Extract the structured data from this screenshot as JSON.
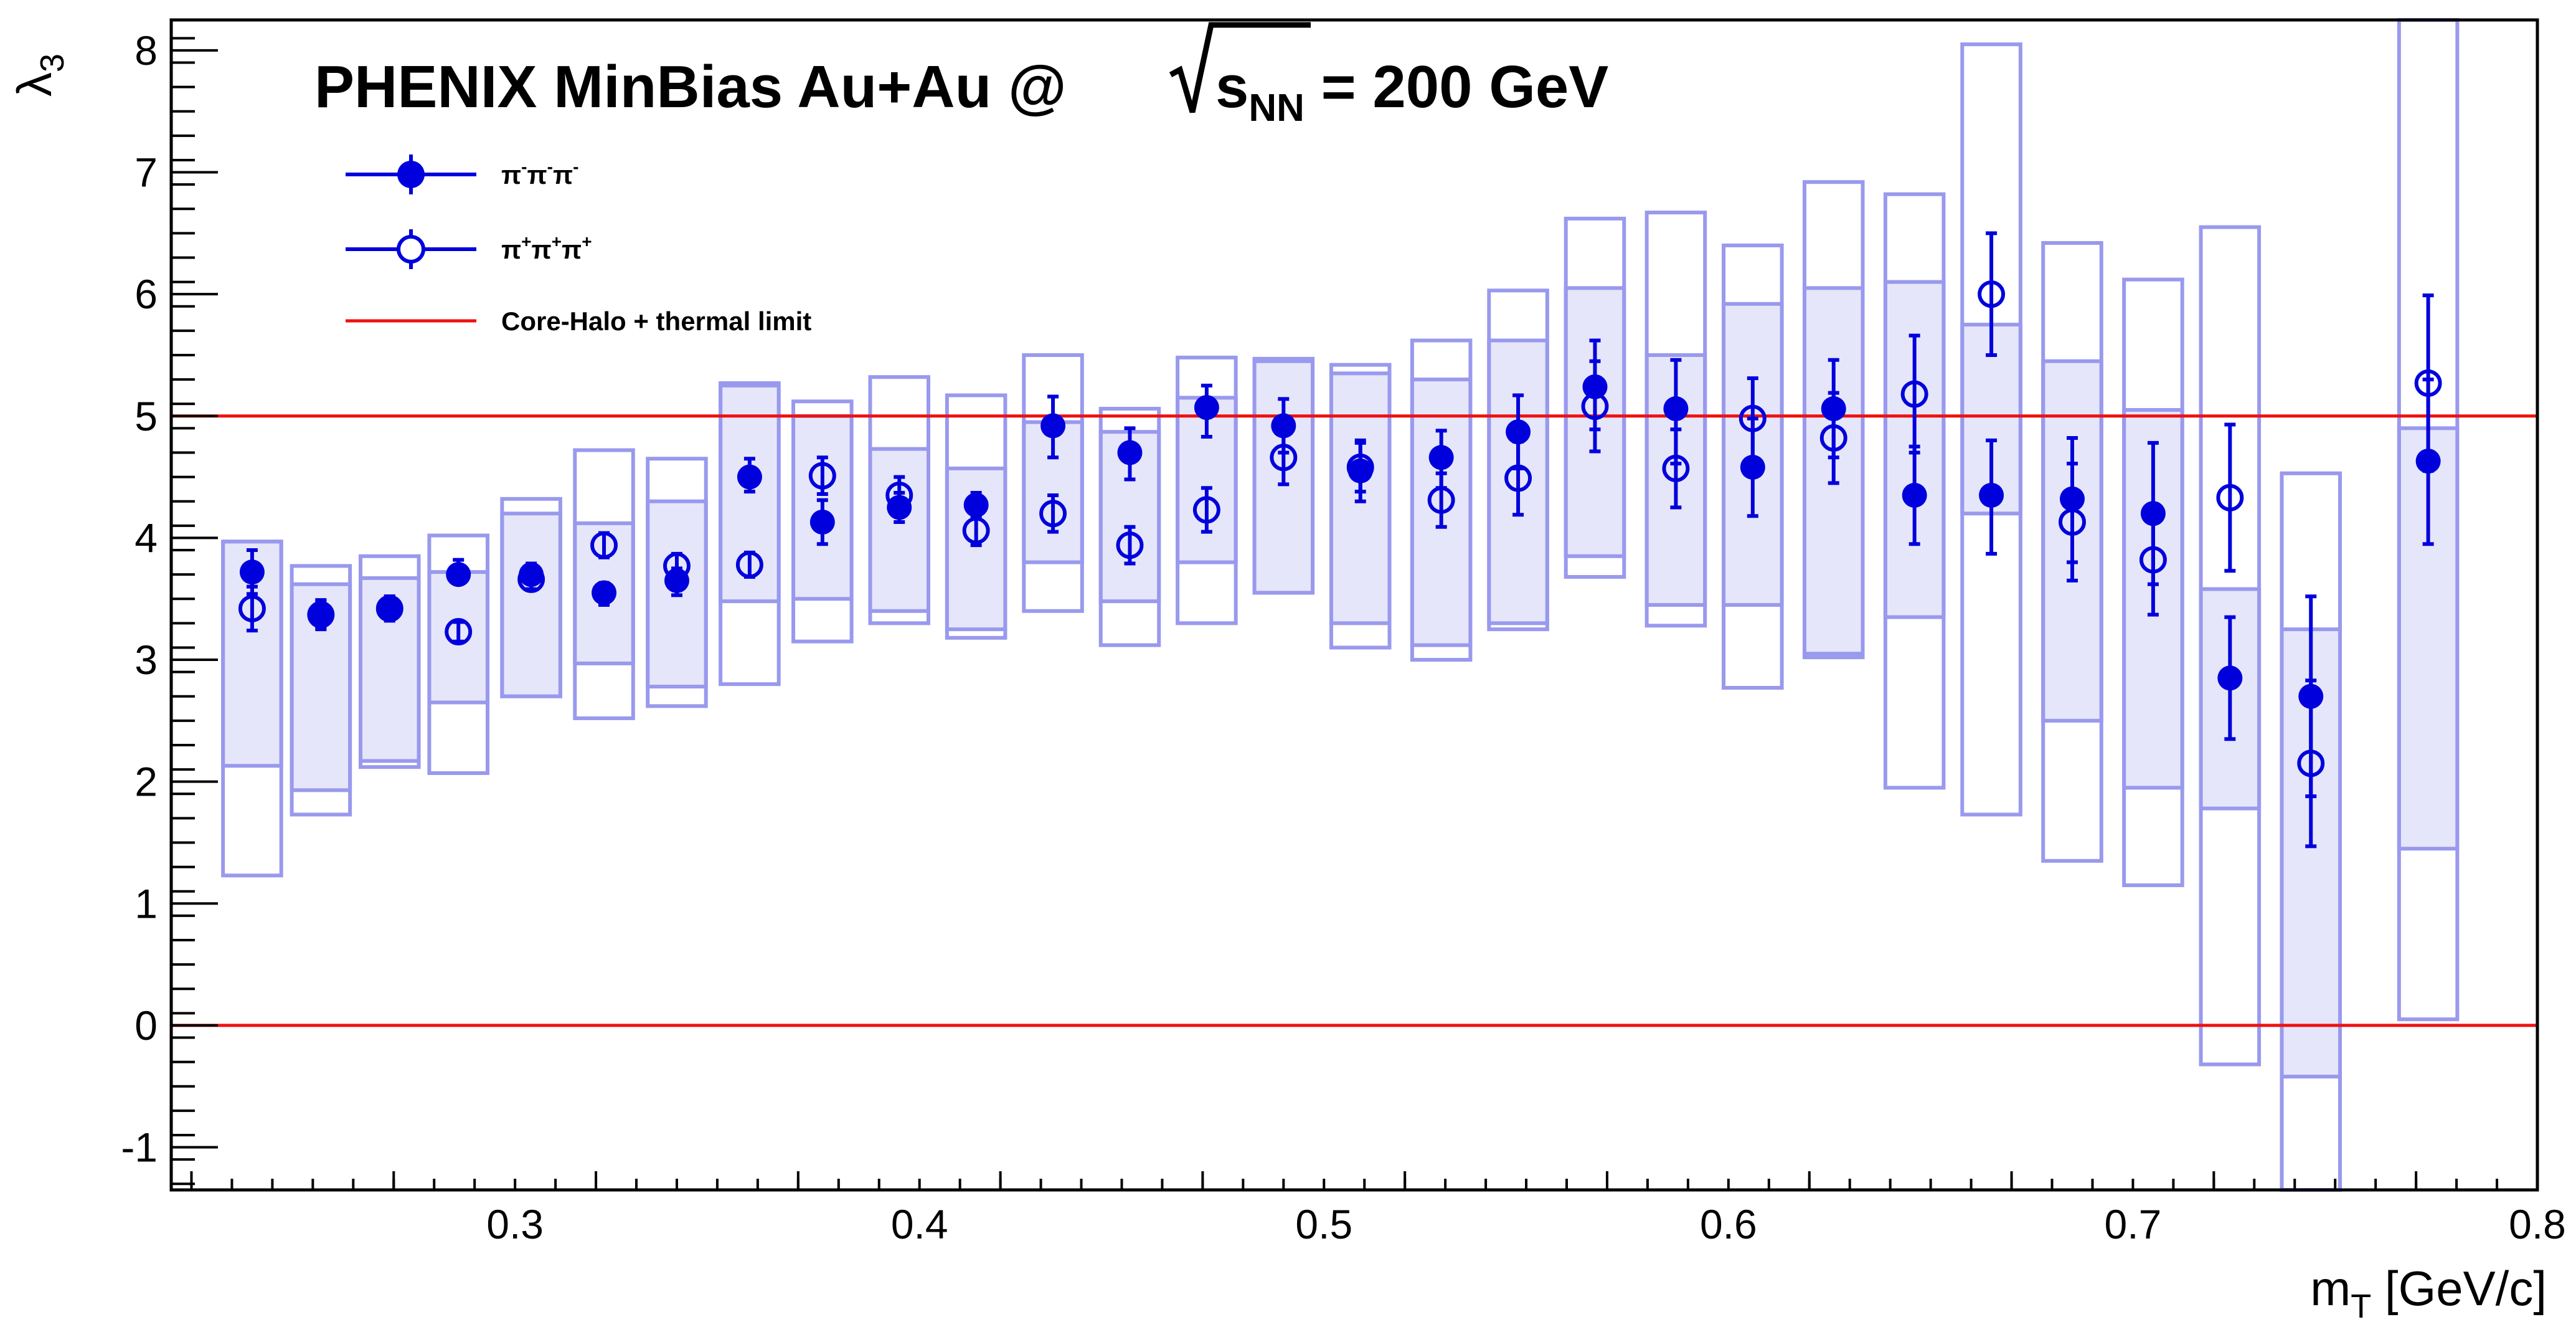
{
  "chart_data": {
    "type": "scatter",
    "title": "PHENIX MinBias Au+Au @ √s_NN = 200 GeV",
    "title_parts": {
      "main": "PHENIX MinBias Au+Au @ ",
      "s": "s",
      "sub": "NN",
      "tail": " = 200 GeV"
    },
    "xlabel_main": "m",
    "xlabel_sub": "T",
    "xlabel_tail": " [GeV/c]",
    "ylabel_main": "λ",
    "ylabel_sub": "3",
    "xlim": [
      0.215,
      0.8
    ],
    "ylim": [
      -1.35,
      8.25
    ],
    "x_ticks": [
      "0.3",
      "0.4",
      "0.5",
      "0.6",
      "0.7",
      "0.8"
    ],
    "y_ticks": [
      "-1",
      "0",
      "1",
      "2",
      "3",
      "4",
      "5",
      "6",
      "7",
      "8"
    ],
    "legend": {
      "position": "top-left",
      "entries": [
        {
          "label_html": "π<sup>-</sup>π<sup>-</sup>π<sup>-</sup>",
          "label_plain": "π⁻π⁻π⁻",
          "marker": "filled-circle"
        },
        {
          "label_html": "π<sup>+</sup>π<sup>+</sup>π<sup>+</sup>",
          "label_plain": "π⁺π⁺π⁺",
          "marker": "open-circle"
        },
        {
          "label_plain": "Core-Halo + thermal limit",
          "marker": "line"
        }
      ]
    },
    "reference_lines": [
      5,
      0
    ],
    "colors": {
      "points": "#0000dd",
      "systematics_fill": "#e6e6fa",
      "systematics_edge": "#9999ee",
      "limit": "#ee1111"
    },
    "series": [
      {
        "name": "π⁻π⁻π⁻",
        "marker": "filled",
        "points": [
          {
            "x": 0.235,
            "y": 3.72,
            "stat": [
              0.18,
              0.18
            ],
            "sys": [
              2.13,
              3.97
            ]
          },
          {
            "x": 0.252,
            "y": 3.37,
            "stat": [
              0.11,
              0.11
            ],
            "sys": [
              1.93,
              3.62
            ]
          },
          {
            "x": 0.269,
            "y": 3.42,
            "stat": [
              0.08,
              0.1
            ],
            "sys": [
              2.17,
              3.67
            ]
          },
          {
            "x": 0.286,
            "y": 3.7,
            "stat": [
              0.07,
              0.12
            ],
            "sys": [
              2.65,
              3.72
            ]
          },
          {
            "x": 0.304,
            "y": 3.7,
            "stat": [
              0.06,
              0.09
            ],
            "sys": [
              2.7,
              4.2
            ]
          },
          {
            "x": 0.322,
            "y": 3.55,
            "stat": [
              0.1,
              0.08
            ],
            "sys": [
              2.97,
              4.12
            ]
          },
          {
            "x": 0.34,
            "y": 3.65,
            "stat": [
              0.12,
              0.1
            ],
            "sys": [
              2.78,
              4.3
            ]
          },
          {
            "x": 0.358,
            "y": 4.5,
            "stat": [
              0.12,
              0.15
            ],
            "sys": [
              3.48,
              5.25
            ]
          },
          {
            "x": 0.376,
            "y": 4.13,
            "stat": [
              0.18,
              0.18
            ],
            "sys": [
              3.5,
              5.0
            ]
          },
          {
            "x": 0.395,
            "y": 4.25,
            "stat": [
              0.12,
              0.12
            ],
            "sys": [
              3.4,
              4.73
            ]
          },
          {
            "x": 0.414,
            "y": 4.27,
            "stat": [
              0.1,
              0.1
            ],
            "sys": [
              3.25,
              4.57
            ]
          },
          {
            "x": 0.433,
            "y": 4.92,
            "stat": [
              0.26,
              0.24
            ],
            "sys": [
              3.8,
              4.95
            ]
          },
          {
            "x": 0.452,
            "y": 4.7,
            "stat": [
              0.22,
              0.2
            ],
            "sys": [
              3.48,
              4.87
            ]
          },
          {
            "x": 0.471,
            "y": 5.07,
            "stat": [
              0.24,
              0.18
            ],
            "sys": [
              3.8,
              5.15
            ]
          },
          {
            "x": 0.49,
            "y": 4.92,
            "stat": [
              0.22,
              0.22
            ],
            "sys": [
              3.55,
              5.45
            ]
          },
          {
            "x": 0.509,
            "y": 4.55,
            "stat": [
              0.25,
              0.25
            ],
            "sys": [
              3.3,
              5.35
            ]
          },
          {
            "x": 0.529,
            "y": 4.66,
            "stat": [
              0.25,
              0.22
            ],
            "sys": [
              3.12,
              5.3
            ]
          },
          {
            "x": 0.548,
            "y": 4.87,
            "stat": [
              0.3,
              0.3
            ],
            "sys": [
              3.3,
              5.62
            ]
          },
          {
            "x": 0.567,
            "y": 5.24,
            "stat": [
              0.35,
              0.38
            ],
            "sys": [
              3.85,
              6.05
            ]
          },
          {
            "x": 0.587,
            "y": 5.06,
            "stat": [
              0.45,
              0.4
            ],
            "sys": [
              3.45,
              5.5
            ]
          },
          {
            "x": 0.606,
            "y": 4.58,
            "stat": [
              0.4,
              0.4
            ],
            "sys": [
              3.45,
              5.92
            ]
          },
          {
            "x": 0.626,
            "y": 5.06,
            "stat": [
              0.4,
              0.4
            ],
            "sys": [
              3.05,
              6.05
            ]
          },
          {
            "x": 0.646,
            "y": 4.35,
            "stat": [
              0.4,
              0.4
            ],
            "sys": [
              3.35,
              6.1
            ]
          },
          {
            "x": 0.665,
            "y": 4.35,
            "stat": [
              0.48,
              0.45
            ],
            "sys": [
              4.2,
              5.75
            ]
          },
          {
            "x": 0.685,
            "y": 4.32,
            "stat": [
              0.52,
              0.5
            ],
            "sys": [
              2.5,
              5.45
            ]
          },
          {
            "x": 0.705,
            "y": 4.2,
            "stat": [
              0.58,
              0.58
            ],
            "sys": [
              1.95,
              5.05
            ]
          },
          {
            "x": 0.724,
            "y": 2.85,
            "stat": [
              0.5,
              0.5
            ],
            "sys": [
              1.78,
              3.58
            ]
          },
          {
            "x": 0.744,
            "y": 2.7,
            "stat": [
              0.82,
              0.82
            ],
            "sys": [
              -0.42,
              3.25
            ]
          },
          {
            "x": 0.773,
            "y": 4.63,
            "stat": [
              0.68,
              0.67
            ],
            "sys": [
              1.45,
              4.9
            ]
          }
        ]
      },
      {
        "name": "π⁺π⁺π⁺",
        "marker": "open",
        "points": [
          {
            "x": 0.235,
            "y": 3.42,
            "stat": [
              0.18,
              0.18
            ],
            "sys": [
              1.23,
              3.97
            ]
          },
          {
            "x": 0.252,
            "y": 3.37,
            "stat": [
              0.12,
              0.12
            ],
            "sys": [
              1.73,
              3.77
            ]
          },
          {
            "x": 0.269,
            "y": 3.42,
            "stat": [
              0.1,
              0.1
            ],
            "sys": [
              2.12,
              3.85
            ]
          },
          {
            "x": 0.286,
            "y": 3.23,
            "stat": [
              0.08,
              0.08
            ],
            "sys": [
              2.07,
              4.02
            ]
          },
          {
            "x": 0.304,
            "y": 3.66,
            "stat": [
              0.08,
              0.08
            ],
            "sys": [
              2.7,
              4.32
            ]
          },
          {
            "x": 0.322,
            "y": 3.94,
            "stat": [
              0.1,
              0.1
            ],
            "sys": [
              2.52,
              4.72
            ]
          },
          {
            "x": 0.34,
            "y": 3.77,
            "stat": [
              0.1,
              0.1
            ],
            "sys": [
              2.62,
              4.65
            ]
          },
          {
            "x": 0.358,
            "y": 3.78,
            "stat": [
              0.1,
              0.1
            ],
            "sys": [
              2.8,
              5.27
            ]
          },
          {
            "x": 0.376,
            "y": 4.51,
            "stat": [
              0.15,
              0.15
            ],
            "sys": [
              3.15,
              5.12
            ]
          },
          {
            "x": 0.395,
            "y": 4.35,
            "stat": [
              0.15,
              0.15
            ],
            "sys": [
              3.3,
              5.32
            ]
          },
          {
            "x": 0.414,
            "y": 4.06,
            "stat": [
              0.12,
              0.12
            ],
            "sys": [
              3.18,
              5.17
            ]
          },
          {
            "x": 0.433,
            "y": 4.2,
            "stat": [
              0.15,
              0.15
            ],
            "sys": [
              3.4,
              5.5
            ]
          },
          {
            "x": 0.452,
            "y": 3.94,
            "stat": [
              0.15,
              0.15
            ],
            "sys": [
              3.12,
              5.06
            ]
          },
          {
            "x": 0.471,
            "y": 4.23,
            "stat": [
              0.18,
              0.18
            ],
            "sys": [
              3.3,
              5.48
            ]
          },
          {
            "x": 0.49,
            "y": 4.66,
            "stat": [
              0.22,
              0.22
            ],
            "sys": [
              3.55,
              5.47
            ]
          },
          {
            "x": 0.509,
            "y": 4.58,
            "stat": [
              0.2,
              0.2
            ],
            "sys": [
              3.1,
              5.42
            ]
          },
          {
            "x": 0.529,
            "y": 4.31,
            "stat": [
              0.22,
              0.22
            ],
            "sys": [
              3.0,
              5.62
            ]
          },
          {
            "x": 0.548,
            "y": 4.49,
            "stat": [
              0.3,
              0.3
            ],
            "sys": [
              3.25,
              6.03
            ]
          },
          {
            "x": 0.567,
            "y": 5.08,
            "stat": [
              0.37,
              0.37
            ],
            "sys": [
              3.68,
              6.62
            ]
          },
          {
            "x": 0.587,
            "y": 4.57,
            "stat": [
              0.32,
              0.32
            ],
            "sys": [
              3.28,
              6.67
            ]
          },
          {
            "x": 0.606,
            "y": 4.98,
            "stat": [
              0.33,
              0.33
            ],
            "sys": [
              2.77,
              6.4
            ]
          },
          {
            "x": 0.626,
            "y": 4.82,
            "stat": [
              0.37,
              0.37
            ],
            "sys": [
              3.02,
              6.92
            ]
          },
          {
            "x": 0.646,
            "y": 5.18,
            "stat": [
              0.48,
              0.48
            ],
            "sys": [
              1.95,
              6.82
            ]
          },
          {
            "x": 0.665,
            "y": 6.0,
            "stat": [
              0.5,
              0.5
            ],
            "sys": [
              1.73,
              8.05
            ]
          },
          {
            "x": 0.685,
            "y": 4.13,
            "stat": [
              0.48,
              0.48
            ],
            "sys": [
              1.35,
              6.42
            ]
          },
          {
            "x": 0.705,
            "y": 3.82,
            "stat": [
              0.45,
              0.45
            ],
            "sys": [
              1.15,
              6.12
            ]
          },
          {
            "x": 0.724,
            "y": 4.33,
            "stat": [
              0.6,
              0.6
            ],
            "sys": [
              -0.32,
              6.55
            ]
          },
          {
            "x": 0.744,
            "y": 2.15,
            "stat": [
              0.68,
              0.68
            ],
            "sys": [
              -1.35,
              4.53
            ]
          },
          {
            "x": 0.773,
            "y": 5.27,
            "stat": [
              0.72,
              0.72
            ],
            "sys": [
              0.05,
              8.25
            ]
          }
        ]
      }
    ]
  }
}
